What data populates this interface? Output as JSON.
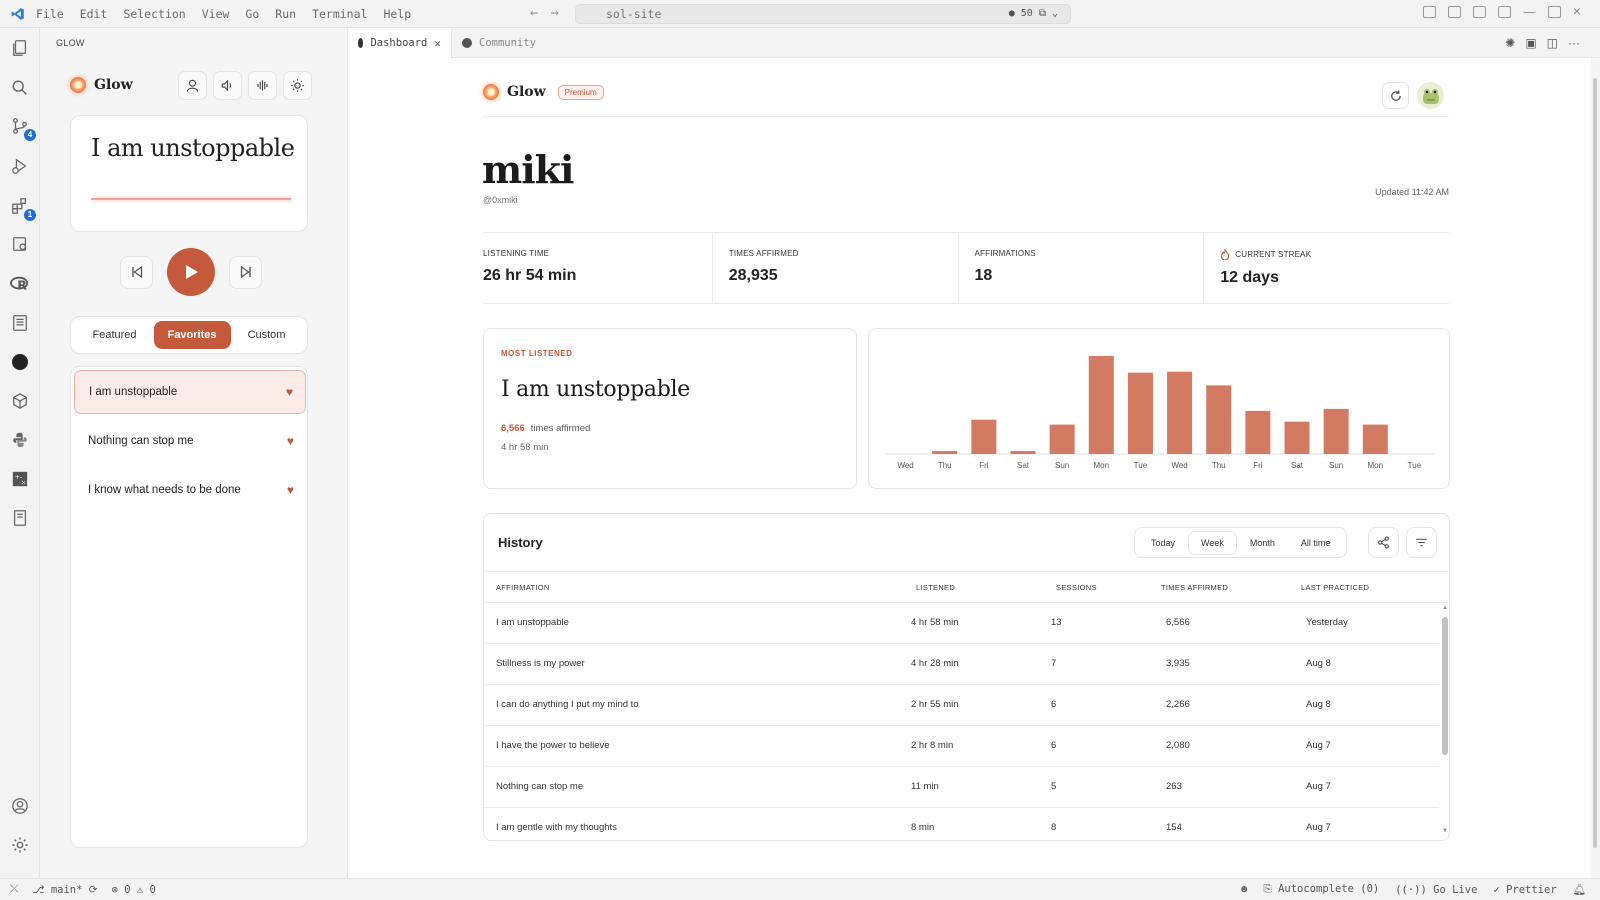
{
  "window": {
    "menu": [
      "File",
      "Edit",
      "Selection",
      "View",
      "Go",
      "Run",
      "Terminal",
      "Help"
    ],
    "command_center": "sol-site",
    "command_center_right": "50"
  },
  "activity": {
    "source_control_badge": "4",
    "extensions_badge": "1"
  },
  "sidebar": {
    "title": "GLOW",
    "brand": "Glow",
    "now_playing": "I am unstoppable",
    "tabs": [
      {
        "label": "Featured",
        "active": false
      },
      {
        "label": "Favorites",
        "active": true
      },
      {
        "label": "Custom",
        "active": false
      }
    ],
    "favorites": [
      {
        "label": "I am unstoppable",
        "active": true
      },
      {
        "label": "Nothing can stop me",
        "active": false
      },
      {
        "label": "I know what needs to be done",
        "active": false
      }
    ]
  },
  "editor_tabs": [
    {
      "label": "Dashboard",
      "active": true
    },
    {
      "label": "Community",
      "active": false
    }
  ],
  "dashboard": {
    "brand": "Glow",
    "premium": "Premium",
    "username": "miki",
    "handle": "@0xmiki",
    "updated": "Updated 11:42 AM",
    "stats": [
      {
        "label": "LISTENING TIME",
        "value": "26 hr 54 min"
      },
      {
        "label": "TIMES AFFIRMED",
        "value": "28,935"
      },
      {
        "label": "AFFIRMATIONS",
        "value": "18"
      },
      {
        "label": "CURRENT STREAK",
        "value": "12 days"
      }
    ],
    "most_listened": {
      "label": "MOST LISTENED",
      "title": "I am unstoppable",
      "count": "6,566",
      "count_suffix": "times affirmed",
      "duration": "4 hr 58 min"
    },
    "history": {
      "title": "History",
      "ranges": [
        {
          "label": "Today",
          "active": false
        },
        {
          "label": "Week",
          "active": true
        },
        {
          "label": "Month",
          "active": false
        },
        {
          "label": "All time",
          "active": false
        }
      ],
      "columns": [
        "AFFIRMATION",
        "LISTENED",
        "SESSIONS",
        "TIMES AFFIRMED",
        "LAST PRACTICED"
      ],
      "rows": [
        [
          "I am unstoppable",
          "4 hr 58 min",
          "13",
          "6,566",
          "Yesterday"
        ],
        [
          "Stillness is my power",
          "4 hr 28 min",
          "7",
          "3,935",
          "Aug 8"
        ],
        [
          "I can do anything I put my mind to",
          "2 hr 55 min",
          "6",
          "2,266",
          "Aug 8"
        ],
        [
          "I have the power to believe",
          "2 hr 8 min",
          "6",
          "2,080",
          "Aug 7"
        ],
        [
          "Nothing can stop me",
          "11 min",
          "5",
          "263",
          "Aug 7"
        ],
        [
          "I am gentle with my thoughts",
          "8 min",
          "8",
          "154",
          "Aug 7"
        ]
      ]
    }
  },
  "chart_data": {
    "type": "bar",
    "categories": [
      "Wed",
      "Thu",
      "Fri",
      "Sat",
      "Sun",
      "Mon",
      "Tue",
      "Wed",
      "Thu",
      "Fri",
      "Sat",
      "Sun",
      "Mon",
      "Tue"
    ],
    "values": [
      0,
      3,
      35,
      3,
      30,
      100,
      83,
      84,
      70,
      44,
      33,
      46,
      30,
      0
    ],
    "title": "",
    "xlabel": "",
    "ylabel": "",
    "ylim": [
      0,
      100
    ],
    "grid": false,
    "color": "#d27a62"
  },
  "statusbar": {
    "branch": "main*",
    "errors": "0",
    "warnings": "0",
    "autocomplete": "Autocomplete (0)",
    "golive": "Go Live",
    "prettier": "Prettier"
  },
  "colors": {
    "accent": "#c4593b",
    "bar": "#d27a62"
  }
}
